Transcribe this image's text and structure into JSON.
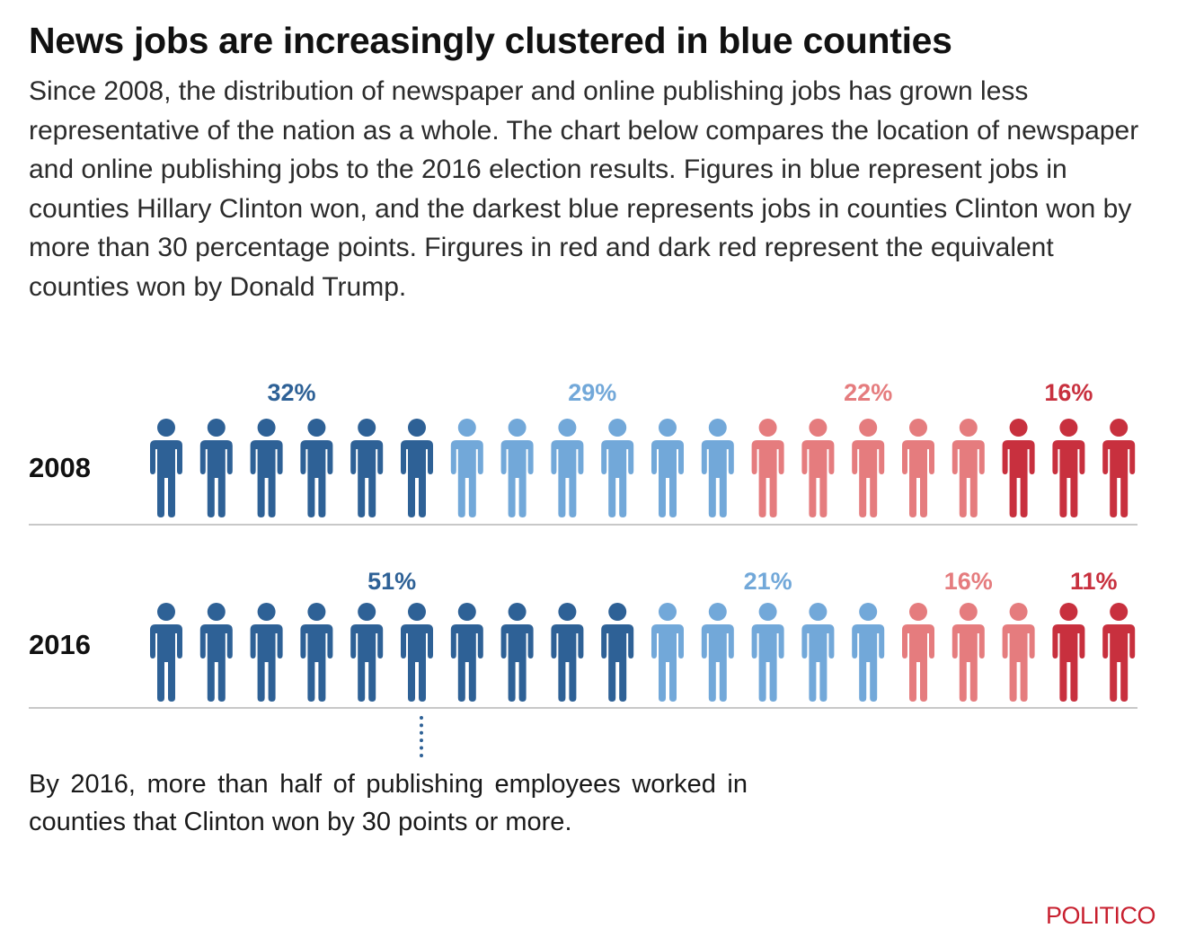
{
  "header": {
    "title": "News jobs are increasingly clustered in blue counties",
    "subtitle": "Since 2008, the distribution of newspaper and online publishing jobs has grown less representative of the nation as a whole. The chart below compares the location of newspaper and online publishing jobs to the 2016 election results. Figures in blue represent jobs in counties Hillary Clinton won, and the darkest blue represents jobs in counties Clinton won by more than 30 percentage points. Firgures in red and dark red represent the equivalent counties won by Donald Trump."
  },
  "colors": {
    "clinton_30plus": "#2e6196",
    "clinton": "#72a8d9",
    "trump": "#e57c7e",
    "trump_30plus": "#c8303e"
  },
  "chart_data": {
    "type": "isotype",
    "icon": "person-icon",
    "icons_per_row": 20,
    "categories": [
      "2008",
      "2016"
    ],
    "series": [
      {
        "key": "clinton_30plus",
        "values": [
          32,
          51
        ],
        "labels": [
          "32%",
          "51%"
        ],
        "icons": [
          6,
          10
        ]
      },
      {
        "key": "clinton",
        "values": [
          29,
          21
        ],
        "labels": [
          "29%",
          "21%"
        ],
        "icons": [
          6,
          5
        ]
      },
      {
        "key": "trump",
        "values": [
          22,
          16
        ],
        "labels": [
          "22%",
          "16%"
        ],
        "icons": [
          5,
          3
        ]
      },
      {
        "key": "trump_30plus",
        "values": [
          16,
          11
        ],
        "labels": [
          "16%",
          "11%"
        ],
        "icons": [
          3,
          2
        ]
      }
    ],
    "annotation": "By 2016, more than half of publishing employees worked in counties that Clinton won by 30 points or more."
  },
  "footer": {
    "logo": "POLITICO"
  }
}
